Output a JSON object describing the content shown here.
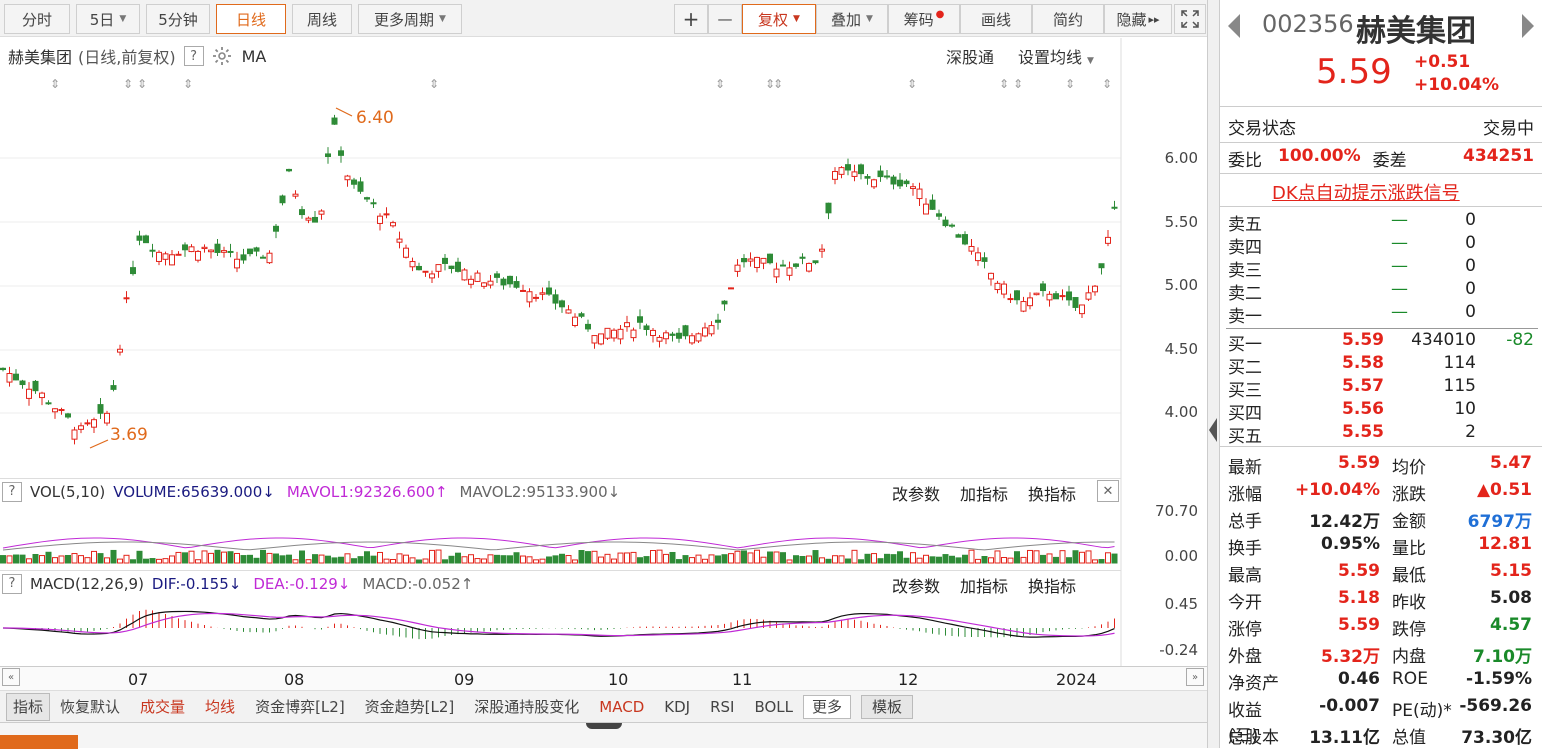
{
  "toolbar": {
    "periods": [
      "分时",
      "5日",
      "5分钟",
      "日线",
      "周线",
      "更多周期"
    ],
    "plus": "+",
    "minus": "—",
    "fuquan": "复权",
    "diejia": "叠加",
    "chouma": "筹码",
    "huaxian": "画线",
    "jianyue": "简约",
    "yincang": "隐藏",
    "arrows": "▸▸"
  },
  "chart_header": {
    "title": "赫美集团",
    "subtitle": "(日线,前复权)",
    "help": "?",
    "ma": "MA",
    "shengutong": "深股通",
    "set_ma": "设置均线"
  },
  "price_axis": [
    "6.00",
    "5.50",
    "5.00",
    "4.50",
    "4.00"
  ],
  "annotations": {
    "high": "6.40",
    "low": "3.69"
  },
  "vol_header": {
    "help": "?",
    "name": "VOL(5,10)",
    "volume": "VOLUME:65639.000",
    "mavol1": "MAVOL1:92326.600",
    "mavol2": "MAVOL2:95133.900",
    "btn1": "改参数",
    "btn2": "加指标",
    "btn3": "换指标",
    "close": "✕"
  },
  "vol_axis": [
    "70.70",
    "0.00"
  ],
  "macd_header": {
    "help": "?",
    "name": "MACD(12,26,9)",
    "dif": "DIF:-0.155",
    "dea": "DEA:-0.129",
    "macd": "MACD:-0.052",
    "btn1": "改参数",
    "btn2": "加指标",
    "btn3": "换指标"
  },
  "macd_axis": [
    "0.45",
    "-0.24"
  ],
  "x_labels": [
    "07",
    "08",
    "09",
    "10",
    "11",
    "12",
    "2024"
  ],
  "bottom_tabs": [
    "指标",
    "恢复默认",
    "成交量",
    "均线",
    "资金博弈[L2]",
    "资金趋势[L2]",
    "深股通持股变化",
    "MACD",
    "KDJ",
    "RSI",
    "BOLL",
    "更多",
    "模板"
  ],
  "quote": {
    "code": "002356",
    "name": "赫美集团",
    "price": "5.59",
    "change": "+0.51",
    "pct": "+10.04%",
    "status_label": "交易状态",
    "status": "交易中",
    "weibi_label": "委比",
    "weibi": "100.00%",
    "weicha_label": "委差",
    "weicha": "434251",
    "dk_link": "DK点自动提示涨跌信号",
    "asks": [
      {
        "label": "卖五",
        "price": "—",
        "vol": "0"
      },
      {
        "label": "卖四",
        "price": "—",
        "vol": "0"
      },
      {
        "label": "卖三",
        "price": "—",
        "vol": "0"
      },
      {
        "label": "卖二",
        "price": "—",
        "vol": "0"
      },
      {
        "label": "卖一",
        "price": "—",
        "vol": "0"
      }
    ],
    "bids": [
      {
        "label": "买一",
        "price": "5.59",
        "vol": "434010",
        "chg": "-82"
      },
      {
        "label": "买二",
        "price": "5.58",
        "vol": "114",
        "chg": ""
      },
      {
        "label": "买三",
        "price": "5.57",
        "vol": "115",
        "chg": ""
      },
      {
        "label": "买四",
        "price": "5.56",
        "vol": "10",
        "chg": ""
      },
      {
        "label": "买五",
        "price": "5.55",
        "vol": "2",
        "chg": ""
      }
    ],
    "stats": [
      [
        "最新",
        "5.59",
        "均价",
        "5.47"
      ],
      [
        "涨幅",
        "+10.04%",
        "涨跌",
        "▲0.51"
      ],
      [
        "总手",
        "12.42万",
        "金额",
        "6797万"
      ],
      [
        "换手",
        "0.95%",
        "量比",
        "12.81"
      ],
      [
        "最高",
        "5.59",
        "最低",
        "5.15"
      ],
      [
        "今开",
        "5.18",
        "昨收",
        "5.08"
      ],
      [
        "涨停",
        "5.59",
        "跌停",
        "4.57"
      ],
      [
        "外盘",
        "5.32万",
        "内盘",
        "7.10万"
      ],
      [
        "净资产",
        "0.46",
        "ROE",
        "-1.59%"
      ],
      [
        "收益(三)",
        "-0.007",
        "PE(动)*",
        "-569.26"
      ],
      [
        "总股本",
        "13.11亿",
        "总值",
        "73.30亿"
      ]
    ]
  },
  "colors": {
    "up": "#e3241b",
    "down": "#2e8b37",
    "accent": "#e06a1c",
    "ma_purple": "#c02ad6",
    "link": "#e3241b"
  }
}
